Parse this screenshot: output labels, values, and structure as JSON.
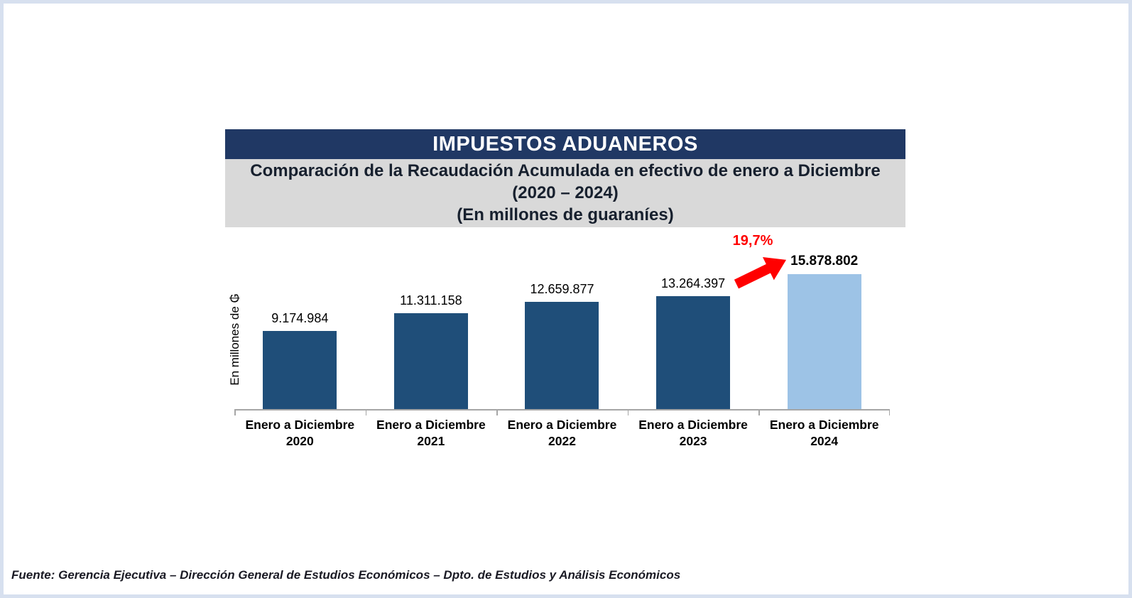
{
  "header": {
    "title": "IMPUESTOS ADUANEROS",
    "subtitle_lines": [
      "Comparación de la Recaudación Acumulada en efectivo de enero a Diciembre",
      "(2020 – 2024)",
      "(En millones de guaraníes)"
    ]
  },
  "chart_data": {
    "type": "bar",
    "title": "IMPUESTOS ADUANEROS",
    "subtitle": "Comparación de la Recaudación Acumulada en efectivo de enero a Diciembre (2020 – 2024) (En millones de guaraníes)",
    "xlabel": "",
    "ylabel": "En millones de ₲",
    "categories": [
      "Enero a Diciembre 2020",
      "Enero a Diciembre 2021",
      "Enero a Diciembre 2022",
      "Enero a Diciembre 2023",
      "Enero a Diciembre 2024"
    ],
    "category_top_line": "Enero a Diciembre",
    "category_years": [
      "2020",
      "2021",
      "2022",
      "2023",
      "2024"
    ],
    "values": [
      9174984,
      11311158,
      12659877,
      13264397,
      15878802
    ],
    "value_labels": [
      "9.174.984",
      "11.311.158",
      "12.659.877",
      "13.264.397",
      "15.878.802"
    ],
    "bar_colors": [
      "#1F4E79",
      "#1F4E79",
      "#1F4E79",
      "#1F4E79",
      "#9DC3E6"
    ],
    "highlight_index": 4,
    "annotation": {
      "text": "19,7%",
      "color": "#FF0000",
      "points_to": "Enero a Diciembre 2024"
    },
    "ylim": [
      0,
      16500000
    ],
    "grid": false,
    "legend": false
  },
  "footer": {
    "source": "Fuente: Gerencia Ejecutiva – Dirección General de Estudios Económicos – Dpto. de Estudios y Análisis Económicos"
  },
  "colors": {
    "page_border": "#D7E0EF",
    "title_bar_bg": "#203864",
    "title_text": "#FFFFFF",
    "subtitle_bg": "#D9D9D9",
    "subtitle_text": "#17202E",
    "bar_primary": "#1F4E79",
    "bar_highlight": "#9DC3E6",
    "annotation_red": "#FF0000",
    "axis_line": "#A6A6A6",
    "value_label_text": "#000000"
  }
}
